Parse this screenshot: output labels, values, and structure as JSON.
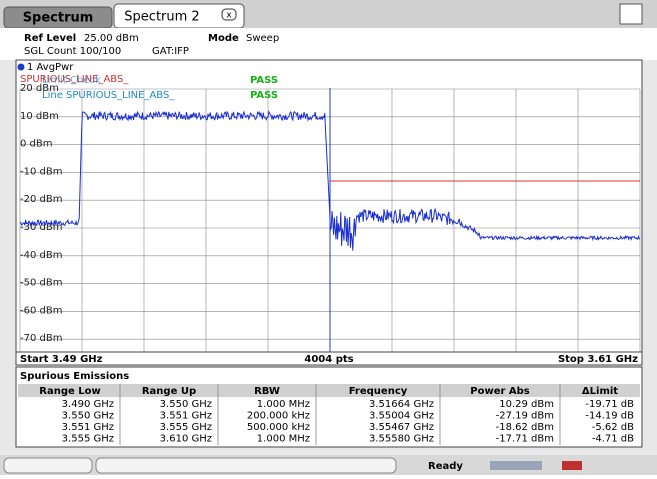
{
  "tabs": [
    "Spectrum",
    "Spectrum 2"
  ],
  "header": {
    "ref_level_label": "Ref Level",
    "ref_level": "25.00 dBm",
    "mode_label": "Mode",
    "mode": "Sweep",
    "sgl": "SGL Count 100/100",
    "gat": "GAT:IFP"
  },
  "trace_label": "1 AvgPwr",
  "limit_checks": [
    {
      "name": "SPURIOUS_LINE_ABS_",
      "overlay": "Limit Check",
      "result": "PASS"
    },
    {
      "name": "Line  SPURIOUS_LINE_ABS_",
      "result": "PASS"
    }
  ],
  "y_labels": [
    "20 dBm",
    "10 dBm",
    "0 dBm",
    "-10 dBm",
    "-20 dBm",
    "-30 dBm",
    "-40 dBm",
    "-50 dBm",
    "-60 dBm",
    "-70 dBm"
  ],
  "footer": {
    "start": "Start 3.49 GHz",
    "points": "4004 pts",
    "stop": "Stop 3.61 GHz"
  },
  "table": {
    "title": "Spurious Emissions",
    "columns": [
      "Range Low",
      "Range Up",
      "RBW",
      "Frequency",
      "Power Abs",
      "ΔLimit"
    ],
    "rows": [
      [
        "3.490 GHz",
        "3.550 GHz",
        "1.000 MHz",
        "3.51664 GHz",
        "10.29 dBm",
        "-19.71 dB"
      ],
      [
        "3.550 GHz",
        "3.551 GHz",
        "200.000 kHz",
        "3.55004 GHz",
        "-27.19 dBm",
        "-14.19 dB"
      ],
      [
        "3.551 GHz",
        "3.555 GHz",
        "500.000 kHz",
        "3.55467 GHz",
        "-18.62 dBm",
        "-5.62 dB"
      ],
      [
        "3.555 GHz",
        "3.610 GHz",
        "1.000 MHz",
        "3.55580 GHz",
        "-17.71 dBm",
        "-4.71 dB"
      ]
    ]
  },
  "status": "Ready"
}
